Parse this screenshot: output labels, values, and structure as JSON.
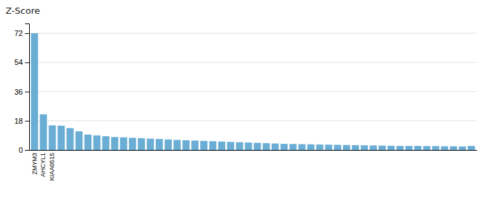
{
  "chart_data": {
    "type": "bar",
    "title": "Z-Score",
    "categories": [
      "ZMYM3",
      "AHCYL1",
      "KIAA0515",
      null,
      null,
      null,
      null,
      null,
      null,
      null,
      null,
      null,
      null,
      null,
      null,
      null,
      null,
      null,
      null,
      null,
      null,
      null,
      null,
      null,
      null,
      null,
      null,
      null,
      null,
      null,
      null,
      null,
      null,
      null,
      null,
      null,
      null,
      null,
      null,
      null,
      null,
      null,
      null,
      null,
      null,
      null,
      null,
      null,
      null,
      null
    ],
    "values": [
      72,
      22,
      15.2,
      15.0,
      13.5,
      11.5,
      9.5,
      9.0,
      8.5,
      8.0,
      7.8,
      7.5,
      7.3,
      7.0,
      6.8,
      6.5,
      6.2,
      6.0,
      5.8,
      5.6,
      5.4,
      5.2,
      5.0,
      4.8,
      4.6,
      4.4,
      4.2,
      4.0,
      3.8,
      3.7,
      3.6,
      3.5,
      3.4,
      3.3,
      3.2,
      3.1,
      3.0,
      2.9,
      2.8,
      2.7,
      2.6,
      2.5,
      2.5,
      2.5,
      2.4,
      2.4,
      2.3,
      2.3,
      2.2,
      2.5
    ],
    "color": "#6aaed6",
    "ylim": [
      0,
      78
    ],
    "yticks": [
      0,
      18,
      36,
      54,
      72
    ],
    "grid": true
  }
}
